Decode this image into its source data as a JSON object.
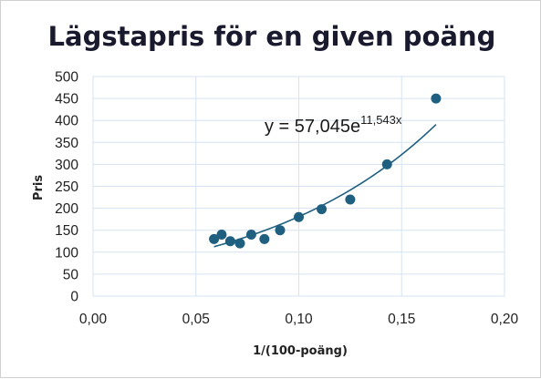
{
  "chart_data": {
    "type": "scatter",
    "title": "Lägstapris  för en given poäng",
    "xlabel": "1/(100-poäng)",
    "ylabel": "Pris",
    "xlim": [
      0,
      0.2
    ],
    "ylim": [
      0,
      500
    ],
    "x_ticks": [
      "0,00",
      "0,05",
      "0,10",
      "0,15",
      "0,20"
    ],
    "y_ticks": [
      "0",
      "50",
      "100",
      "150",
      "200",
      "250",
      "300",
      "350",
      "400",
      "450",
      "500"
    ],
    "grid": true,
    "legend": "none",
    "marker_color": "#1f5f80",
    "trendline_color": "#1f5f80",
    "series": [
      {
        "points": [
          {
            "x": 0.0588,
            "y": 130
          },
          {
            "x": 0.0625,
            "y": 140
          },
          {
            "x": 0.0667,
            "y": 125
          },
          {
            "x": 0.0714,
            "y": 120
          },
          {
            "x": 0.0769,
            "y": 140
          },
          {
            "x": 0.0833,
            "y": 130
          },
          {
            "x": 0.0909,
            "y": 150
          },
          {
            "x": 0.1,
            "y": 180
          },
          {
            "x": 0.1111,
            "y": 198
          },
          {
            "x": 0.125,
            "y": 220
          },
          {
            "x": 0.1429,
            "y": 300
          },
          {
            "x": 0.1667,
            "y": 450
          }
        ]
      }
    ],
    "trendline": {
      "type": "exponential",
      "a": 57.045,
      "b": 11.543,
      "x_range": [
        0.0588,
        0.1667
      ],
      "label_main": "y = 57,045e",
      "label_exponent": "11,543x"
    }
  }
}
